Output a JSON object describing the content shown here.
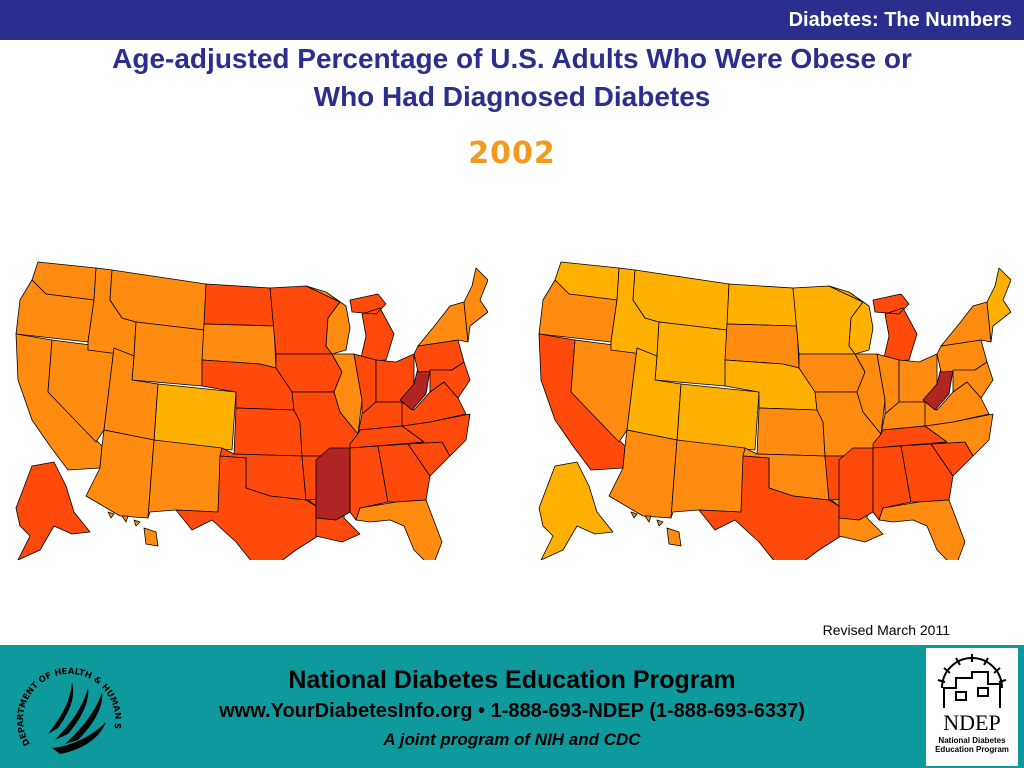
{
  "header": {
    "section_title": "Diabetes: The Numbers",
    "title_line1": "Age-adjusted Percentage of U.S. Adults Who Were Obese or",
    "title_line2": "Who Had Diagnosed Diabetes",
    "year": "2002"
  },
  "colors": {
    "header_bar": "#2b2e8c",
    "title": "#2b2e8c",
    "year": "#f39a1e",
    "footer_bar": "#0e9a9d",
    "legend_scale": [
      "#ffb000",
      "#ff8c10",
      "#ff4a0c",
      "#b02424"
    ]
  },
  "maps": [
    {
      "name": "obesity",
      "states": {
        "WA": "#ff8c10",
        "OR": "#ff8c10",
        "CA": "#ff8c10",
        "NV": "#ff8c10",
        "ID": "#ff8c10",
        "MT": "#ff8c10",
        "WY": "#ff8c10",
        "UT": "#ff8c10",
        "CO": "#ffb000",
        "AZ": "#ff8c10",
        "NM": "#ff8c10",
        "ND": "#ff4a0c",
        "SD": "#ff8c10",
        "NE": "#ff4a0c",
        "KS": "#ff4a0c",
        "OK": "#ff4a0c",
        "TX": "#ff4a0c",
        "MN": "#ff4a0c",
        "IA": "#ff4a0c",
        "MO": "#ff4a0c",
        "AR": "#ff4a0c",
        "LA": "#ff4a0c",
        "WI": "#ff8c10",
        "IL": "#ff8c10",
        "MI": "#ff4a0c",
        "IN": "#ff4a0c",
        "OH": "#ff4a0c",
        "KY": "#ff4a0c",
        "TN": "#ff4a0c",
        "MS": "#b02424",
        "AL": "#ff4a0c",
        "GA": "#ff4a0c",
        "FL": "#ff8c10",
        "SC": "#ff4a0c",
        "NC": "#ff4a0c",
        "VA": "#ff4a0c",
        "WV": "#b02424",
        "PA": "#ff4a0c",
        "NY": "#ff8c10",
        "NE_US": "#ff8c10",
        "MD": "#ff4a0c",
        "AK": "#ff4a0c",
        "HI": "#ff8c10"
      }
    },
    {
      "name": "diabetes",
      "states": {
        "WA": "#ffb000",
        "OR": "#ff8c10",
        "CA": "#ff4a0c",
        "NV": "#ff8c10",
        "ID": "#ffb000",
        "MT": "#ffb000",
        "WY": "#ffb000",
        "UT": "#ffb000",
        "CO": "#ffb000",
        "AZ": "#ff8c10",
        "NM": "#ff8c10",
        "ND": "#ffb000",
        "SD": "#ff8c10",
        "NE": "#ffb000",
        "KS": "#ff8c10",
        "OK": "#ff8c10",
        "TX": "#ff4a0c",
        "MN": "#ffb000",
        "IA": "#ff8c10",
        "MO": "#ff8c10",
        "AR": "#ff4a0c",
        "LA": "#ff8c10",
        "WI": "#ffb000",
        "IL": "#ff8c10",
        "MI": "#ff4a0c",
        "IN": "#ff8c10",
        "OH": "#ff8c10",
        "KY": "#ff8c10",
        "TN": "#ff4a0c",
        "MS": "#ff4a0c",
        "AL": "#ff4a0c",
        "GA": "#ff4a0c",
        "FL": "#ff8c10",
        "SC": "#ff4a0c",
        "NC": "#ff8c10",
        "VA": "#ff8c10",
        "WV": "#b02424",
        "PA": "#ff8c10",
        "NY": "#ff8c10",
        "NE_US": "#ffb000",
        "MD": "#ff8c10",
        "AK": "#ffb000",
        "HI": "#ff8c10"
      }
    }
  ],
  "revised": "Revised March 2011",
  "footer": {
    "line1": "National Diabetes Education Program",
    "line2": "www.YourDiabetesInfo.org • 1-888-693-NDEP (1-888-693-6337)",
    "line3": "A joint program of NIH and CDC",
    "hhs_seal_text": "DEPARTMENT OF HEALTH & HUMAN SERVICES · USA",
    "ndep_logo_text": "NDEP",
    "ndep_logo_caption": "National Diabetes Education Program"
  }
}
